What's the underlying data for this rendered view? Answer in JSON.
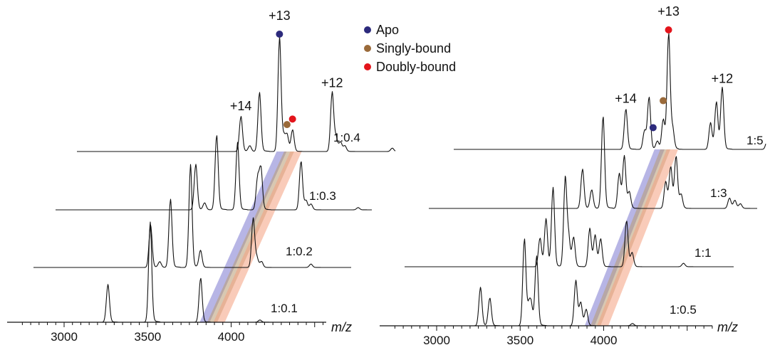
{
  "colors": {
    "apo": "#2c2a7c",
    "singly": "#9a6a3a",
    "doubly": "#e3141b",
    "band_apo": "#7b78d0",
    "band_singly": "#b89a72",
    "band_doubly": "#f4a07f"
  },
  "legend": {
    "placement": "top-center",
    "items": [
      {
        "key": "apo",
        "label": "Apo"
      },
      {
        "key": "singly",
        "label": "Singly-bound"
      },
      {
        "key": "doubly",
        "label": "Doubly-bound"
      }
    ]
  },
  "chart_data": [
    {
      "type": "line",
      "xlabel": "m/z",
      "xlim": [
        2770,
        4820
      ],
      "x_ticks": [
        3000,
        3500,
        4000
      ],
      "charge_labels": [
        {
          "text": "+14",
          "x": 3649,
          "trace": "1:0.4"
        },
        {
          "text": "+13",
          "x": 3880,
          "trace": "1:0.4"
        },
        {
          "text": "+12",
          "x": 4195,
          "trace": "1:0.4"
        }
      ],
      "markers": [
        {
          "species": "apo",
          "x": 3880,
          "trace": "1:0.4",
          "peak": 1.0
        },
        {
          "species": "singly",
          "x": 3925,
          "trace": "1:0.4",
          "peak": 0.18
        },
        {
          "species": "doubly",
          "x": 3958,
          "trace": "1:0.4",
          "peak": 0.23
        }
      ],
      "traces": [
        {
          "label": "1:0.4",
          "offset": 0,
          "peaks": [
            [
              3649,
              0.31
            ],
            [
              3702,
              0.05
            ],
            [
              3760,
              0.52
            ],
            [
              3880,
              1.0
            ],
            [
              3905,
              0.12
            ],
            [
              3925,
              0.14
            ],
            [
              3958,
              0.19
            ],
            [
              4195,
              0.52
            ],
            [
              4218,
              0.12
            ],
            [
              4245,
              0.08
            ],
            [
              4271,
              0.05
            ],
            [
              4555,
              0.03
            ]
          ]
        },
        {
          "label": "1:0.3",
          "offset": 1,
          "peaks": [
            [
              3515,
              0.4
            ],
            [
              3568,
              0.06
            ],
            [
              3640,
              0.66
            ],
            [
              3765,
              0.59
            ],
            [
              3885,
              0.27
            ],
            [
              3905,
              0.36
            ],
            [
              4145,
              0.43
            ],
            [
              4175,
              0.08
            ],
            [
              4205,
              0.05
            ],
            [
              4487,
              0.02
            ]
          ]
        },
        {
          "label": "1:0.2",
          "offset": 2,
          "peaks": [
            [
              3381,
              0.37
            ],
            [
              3436,
              0.05
            ],
            [
              3500,
              0.6
            ],
            [
              3620,
              0.9
            ],
            [
              3680,
              0.15
            ],
            [
              3995,
              0.43
            ],
            [
              4017,
              0.08
            ],
            [
              4045,
              0.05
            ],
            [
              4341,
              0.03
            ]
          ]
        },
        {
          "label": "1:0.1",
          "offset": 3,
          "peaks": [
            [
              3262,
              0.33
            ],
            [
              3515,
              0.88
            ],
            [
              3817,
              0.39
            ],
            [
              4172,
              0.02
            ]
          ]
        }
      ]
    },
    {
      "type": "line",
      "xlabel": "m/z",
      "xlim": [
        2770,
        4820
      ],
      "x_ticks": [
        3000,
        3500,
        4000
      ],
      "charge_labels": [
        {
          "text": "+14",
          "x": 3723,
          "trace": "1:5"
        },
        {
          "text": "+13",
          "x": 3979,
          "trace": "1:5"
        },
        {
          "text": "+12",
          "x": 4300,
          "trace": "1:5"
        }
      ],
      "markers": [
        {
          "species": "apo",
          "x": 3912,
          "trace": "1:5",
          "peak": 0.13
        },
        {
          "species": "singly",
          "x": 3947,
          "trace": "1:5",
          "peak": 0.37
        },
        {
          "species": "doubly",
          "x": 3979,
          "trace": "1:5",
          "peak": 1.0
        }
      ],
      "traces": [
        {
          "label": "1:5",
          "offset": 0,
          "peaks": [
            [
              3723,
              0.35
            ],
            [
              3835,
              0.16
            ],
            [
              3862,
              0.45
            ],
            [
              3912,
              0.07
            ],
            [
              3947,
              0.26
            ],
            [
              3979,
              1.0
            ],
            [
              4003,
              0.17
            ],
            [
              4230,
              0.23
            ],
            [
              4265,
              0.41
            ],
            [
              4300,
              0.53
            ],
            [
              4570,
              0.08
            ],
            [
              4600,
              0.06
            ],
            [
              4630,
              0.04
            ]
          ]
        },
        {
          "label": "1:3",
          "offset": 1,
          "peaks": [
            [
              3600,
              0.34
            ],
            [
              3655,
              0.16
            ],
            [
              3723,
              0.8
            ],
            [
              3820,
              0.3
            ],
            [
              3850,
              0.45
            ],
            [
              3880,
              0.14
            ],
            [
              4098,
              0.23
            ],
            [
              4128,
              0.36
            ],
            [
              4160,
              0.45
            ],
            [
              4190,
              0.12
            ],
            [
              4480,
              0.09
            ],
            [
              4512,
              0.07
            ],
            [
              4545,
              0.04
            ]
          ]
        },
        {
          "label": "1:1",
          "offset": 2,
          "peaks": [
            [
              3482,
              0.25
            ],
            [
              3518,
              0.41
            ],
            [
              3560,
              0.68
            ],
            [
              3633,
              0.75
            ],
            [
              3653,
              0.25
            ],
            [
              3683,
              0.25
            ],
            [
              3780,
              0.33
            ],
            [
              3812,
              0.27
            ],
            [
              3845,
              0.24
            ],
            [
              4000,
              0.4
            ],
            [
              4033,
              0.12
            ],
            [
              4341,
              0.03
            ]
          ]
        },
        {
          "label": "1:0.5",
          "offset": 3,
          "peaks": [
            [
              3262,
              0.33
            ],
            [
              3318,
              0.24
            ],
            [
              3525,
              0.75
            ],
            [
              3550,
              0.14
            ],
            [
              3565,
              0.18
            ],
            [
              3598,
              0.6
            ],
            [
              3833,
              0.39
            ],
            [
              3862,
              0.2
            ],
            [
              3895,
              0.14
            ],
            [
              4172,
              0.02
            ]
          ]
        }
      ]
    }
  ]
}
